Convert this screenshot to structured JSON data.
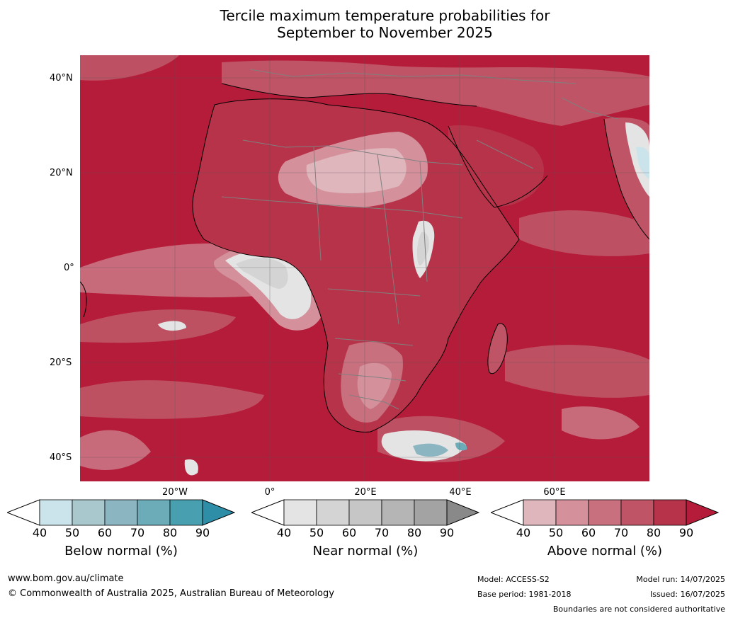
{
  "title_line1": "Tercile maximum temperature probabilities for",
  "title_line2": "September to November 2025",
  "lat_labels": [
    "40°N",
    "20°N",
    "0°",
    "20°S",
    "40°S"
  ],
  "lon_labels": [
    "20°W",
    "0°",
    "20°E",
    "40°E",
    "60°E"
  ],
  "colors": {
    "above": [
      "#ffffff",
      "#e0b6bd",
      "#d4919c",
      "#c9707f",
      "#be5465",
      "#b63349",
      "#b51c3a"
    ],
    "near": [
      "#ffffff",
      "#e4e4e4",
      "#d4d4d4",
      "#c6c6c6",
      "#b5b5b5",
      "#a3a3a3",
      "#898989"
    ],
    "below": [
      "#ffffff",
      "#cbe3ea",
      "#a9c8cd",
      "#8bb6c1",
      "#6cacb8",
      "#479fb0",
      "#2e8ea8"
    ],
    "land_border": "#808080",
    "coast": "#000000"
  },
  "colorbars": [
    {
      "title": "Below normal (%)",
      "ticks": [
        "40",
        "50",
        "60",
        "70",
        "80",
        "90"
      ]
    },
    {
      "title": "Near normal (%)",
      "ticks": [
        "40",
        "50",
        "60",
        "70",
        "80",
        "90"
      ]
    },
    {
      "title": "Above normal (%)",
      "ticks": [
        "40",
        "50",
        "60",
        "70",
        "80",
        "90"
      ]
    }
  ],
  "footer": {
    "url": "www.bom.gov.au/climate",
    "copyright": "© Commonwealth of Australia 2025, Australian Bureau of Meteorology",
    "model": "Model: ACCESS-S2",
    "base_period": "Base period: 1981-2018",
    "model_run": "Model run: 14/07/2025",
    "issued": "Issued: 16/07/2025",
    "disclaimer": "Boundaries are not considered authoritative"
  }
}
